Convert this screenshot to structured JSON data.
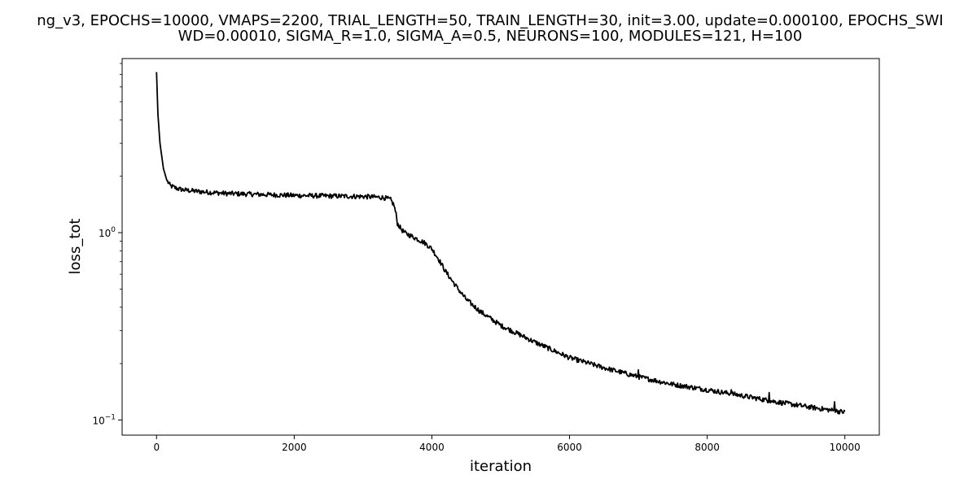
{
  "chart_data": {
    "type": "line",
    "title_line1": "ng_v3, EPOCHS=10000, VMAPS=2200, TRIAL_LENGTH=50, TRAIN_LENGTH=30, init=3.00, update=0.000100, EPOCHS_SWI",
    "title_line2": "WD=0.00010, SIGMA_R=1.0, SIGMA_A=0.5, NEURONS=100, MODULES=121, H=100",
    "xlabel": "iteration",
    "ylabel": "loss_tot",
    "xscale": "linear",
    "yscale": "log",
    "xlim": [
      -500,
      10500
    ],
    "ylim": [
      0.083,
      8.5
    ],
    "x_ticks": [
      0,
      2000,
      4000,
      6000,
      8000,
      10000
    ],
    "x_tick_labels": [
      "0",
      "2000",
      "4000",
      "6000",
      "8000",
      "10000"
    ],
    "y_major_ticks": [
      0.1,
      1
    ],
    "y_major_tick_labels": [
      {
        "base": "10",
        "exp": "−1"
      },
      {
        "base": "10",
        "exp": "0"
      }
    ],
    "y_minor_ticks": [
      0.2,
      0.3,
      0.4,
      0.5,
      0.6,
      0.7,
      0.8,
      0.9,
      2,
      3,
      4,
      5,
      6,
      7,
      8
    ],
    "grid": false,
    "legend": "none",
    "series": [
      {
        "color": "#000000",
        "x": [
          0,
          20,
          50,
          100,
          150,
          200,
          300,
          400,
          600,
          800,
          1000,
          1500,
          2000,
          2500,
          3000,
          3300,
          3400,
          3450,
          3480,
          3500,
          3550,
          3600,
          3700,
          3800,
          3900,
          4000,
          4100,
          4200,
          4300,
          4400,
          4500,
          4700,
          5000,
          5500,
          6000,
          6500,
          7000,
          7500,
          8000,
          8500,
          9000,
          9500,
          10000
        ],
        "y": [
          7.2,
          4.3,
          3.0,
          2.2,
          1.9,
          1.78,
          1.72,
          1.69,
          1.66,
          1.64,
          1.62,
          1.6,
          1.58,
          1.57,
          1.56,
          1.54,
          1.5,
          1.4,
          1.25,
          1.12,
          1.05,
          1.0,
          0.96,
          0.92,
          0.88,
          0.82,
          0.72,
          0.62,
          0.55,
          0.49,
          0.44,
          0.38,
          0.32,
          0.26,
          0.215,
          0.19,
          0.17,
          0.155,
          0.145,
          0.135,
          0.125,
          0.117,
          0.11
        ],
        "spikes": [
          {
            "x": 7000,
            "y": 0.185
          },
          {
            "x": 8350,
            "y": 0.145
          },
          {
            "x": 8900,
            "y": 0.14
          },
          {
            "x": 9850,
            "y": 0.125
          }
        ]
      }
    ]
  }
}
